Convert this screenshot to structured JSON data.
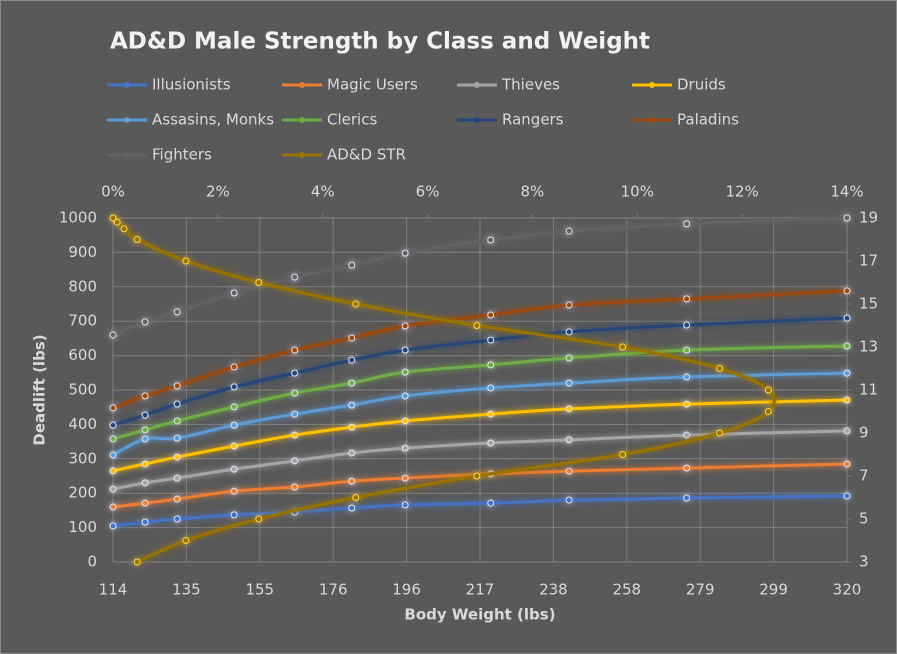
{
  "chart_data": {
    "type": "line",
    "title": "AD&D Male Strength by Class and Weight",
    "x_label": "Body Weight (lbs)",
    "y_label": "Deadlift (lbs)",
    "x": [
      114,
      123,
      132,
      148,
      165,
      181,
      196,
      220,
      242,
      275,
      320
    ],
    "xlim": [
      114,
      320
    ],
    "xticks": [
      114,
      {
        "value": 134.6,
        "label": "135"
      },
      {
        "value": 155.2,
        "label": "155"
      },
      {
        "value": 175.8,
        "label": "176"
      },
      {
        "value": 196.4,
        "label": "196"
      },
      217,
      {
        "value": 237.6,
        "label": "238"
      },
      {
        "value": 258.2,
        "label": "258"
      },
      {
        "value": 278.8,
        "label": "279"
      },
      {
        "value": 299.4,
        "label": "299"
      },
      320
    ],
    "ylim": [
      0,
      1000
    ],
    "yticks": [
      0,
      100,
      200,
      300,
      400,
      500,
      600,
      700,
      800,
      900,
      1000
    ],
    "x2lim": [
      0,
      14
    ],
    "x2ticks": [
      {
        "value": 0,
        "label": "0%"
      },
      {
        "value": 2,
        "label": "2%"
      },
      {
        "value": 4,
        "label": "4%"
      },
      {
        "value": 6,
        "label": "6%"
      },
      {
        "value": 8,
        "label": "8%"
      },
      {
        "value": 10,
        "label": "10%"
      },
      {
        "value": 12,
        "label": "12%"
      },
      {
        "value": 14,
        "label": "14%"
      }
    ],
    "y2lim": [
      3,
      19
    ],
    "y2ticks": [
      3,
      5,
      7,
      9,
      11,
      13,
      15,
      17,
      19
    ],
    "grid": true,
    "series": [
      {
        "name": "Illusionists",
        "color": "#4472c4",
        "values": [
          105,
          116,
          125,
          137,
          145,
          157,
          166,
          171,
          180,
          186,
          192
        ]
      },
      {
        "name": "Magic Users",
        "color": "#ed7d31",
        "values": [
          160,
          171,
          183,
          206,
          218,
          235,
          244,
          256,
          264,
          273,
          285
        ]
      },
      {
        "name": "Thieves",
        "color": "#a5a5a5",
        "values": [
          212,
          230,
          244,
          270,
          294,
          317,
          331,
          346,
          355,
          369,
          381
        ]
      },
      {
        "name": "Druids",
        "color": "#ffc000",
        "values": [
          265,
          285,
          305,
          337,
          369,
          392,
          410,
          430,
          445,
          459,
          471
        ]
      },
      {
        "name": "Assasins, Monks",
        "color": "#5b9bd5",
        "values": [
          311,
          358,
          360,
          398,
          430,
          456,
          483,
          506,
          520,
          538,
          549
        ]
      },
      {
        "name": "Clerics",
        "color": "#70ad47",
        "values": [
          358,
          384,
          410,
          451,
          491,
          520,
          552,
          573,
          593,
          616,
          628
        ]
      },
      {
        "name": "Rangers",
        "color": "#264478",
        "values": [
          398,
          427,
          459,
          509,
          549,
          587,
          616,
          645,
          669,
          689,
          709
        ]
      },
      {
        "name": "Paladins",
        "color": "#9e480e",
        "values": [
          448,
          483,
          512,
          567,
          616,
          651,
          686,
          718,
          747,
          765,
          788
        ]
      },
      {
        "name": "Fighters",
        "color": "#636363",
        "values": [
          660,
          698,
          727,
          782,
          828,
          863,
          898,
          936,
          962,
          983,
          1000
        ]
      },
      {
        "name": "AD&D STR",
        "color": "#997300",
        "axis": "y2",
        "x": [
          0.46,
          1.39,
          2.78,
          4.63,
          6.94,
          9.72,
          11.57,
          12.5,
          12.5,
          11.57,
          9.72,
          6.94,
          4.63,
          2.78,
          1.39,
          0.46,
          0.21,
          0.08,
          0
        ],
        "values": [
          3,
          4,
          5,
          6,
          7,
          8,
          9,
          10,
          11,
          12,
          13,
          14,
          15,
          16,
          17,
          18,
          18.5,
          18.8,
          19
        ]
      }
    ]
  }
}
